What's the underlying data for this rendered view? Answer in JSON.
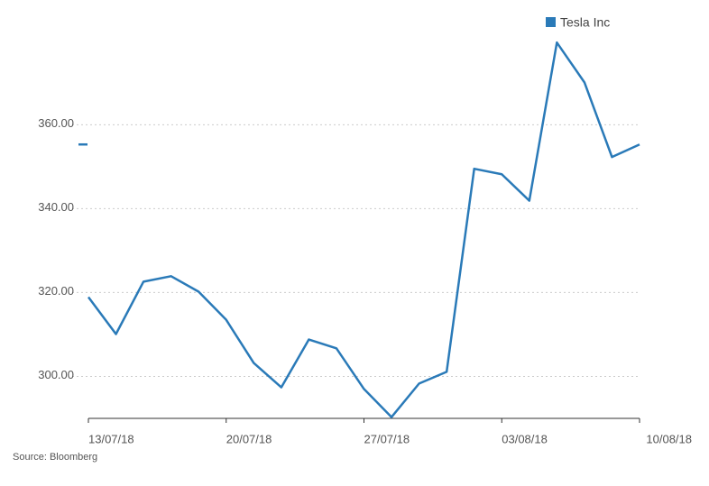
{
  "chart_data": {
    "type": "line",
    "categories": [
      "13/07/18",
      null,
      null,
      null,
      null,
      "20/07/18",
      null,
      null,
      null,
      null,
      "27/07/18",
      null,
      null,
      null,
      null,
      "03/08/18",
      null,
      null,
      null,
      null,
      "10/08/18"
    ],
    "series": [
      {
        "name": "Tesla Inc",
        "color": "#2a7ab8",
        "values": [
          318.9,
          310.1,
          322.6,
          323.9,
          320.2,
          313.5,
          303.2,
          297.4,
          308.8,
          306.7,
          297.0,
          290.3,
          298.3,
          301.1,
          349.5,
          348.2,
          341.9,
          379.6,
          370.1,
          352.3,
          355.3
        ]
      }
    ],
    "ylim": [
      290,
      382
    ],
    "yticks": [
      {
        "value": 300,
        "label": "300.00"
      },
      {
        "value": 320,
        "label": "320.00"
      },
      {
        "value": 340,
        "label": "340.00"
      },
      {
        "value": 360,
        "label": "360.00"
      }
    ],
    "grid": true,
    "legend": "top-right",
    "source": "Source: Bloomberg"
  }
}
